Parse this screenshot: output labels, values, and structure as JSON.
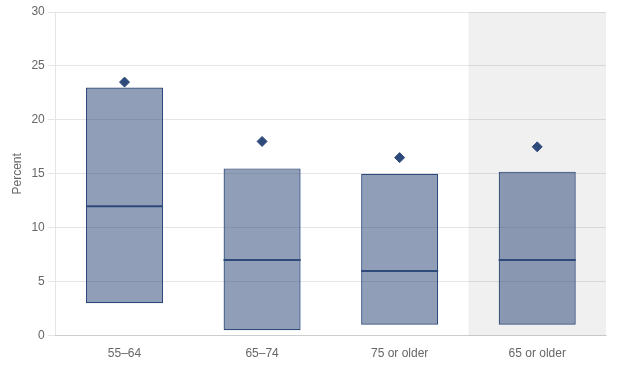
{
  "chart_data": {
    "type": "box",
    "ylabel": "Percent",
    "categories": [
      "55–64",
      "65–74",
      "75 or older",
      "65 or older"
    ],
    "q1": [
      3.0,
      0.5,
      1.0,
      1.0
    ],
    "median": [
      12.0,
      7.0,
      6.0,
      7.0
    ],
    "q3": [
      23.0,
      15.5,
      15.0,
      15.2
    ],
    "diamond": [
      23.5,
      18.0,
      16.5,
      17.5
    ],
    "color": "#2E4A7A",
    "ylim": [
      0,
      30
    ],
    "yticks": [
      0,
      5,
      10,
      15,
      20,
      25,
      30
    ],
    "grid": true
  }
}
